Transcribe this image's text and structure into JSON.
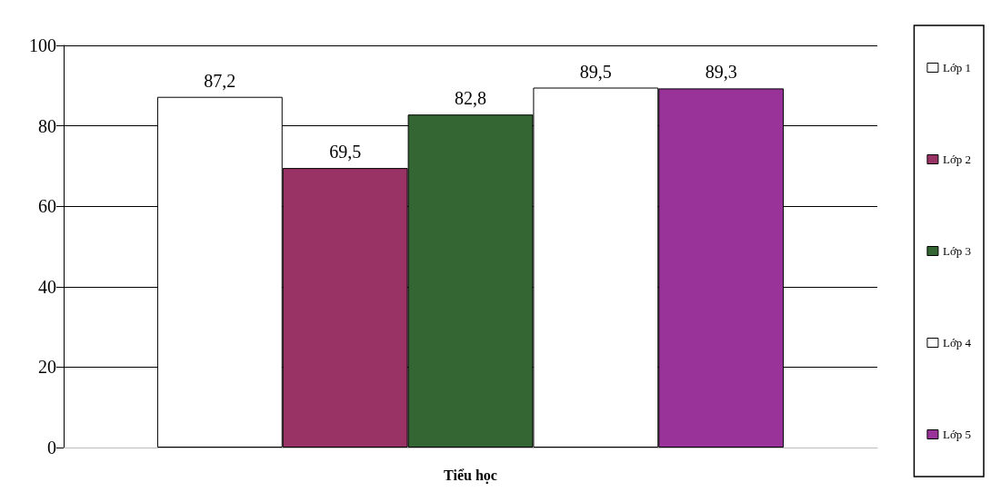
{
  "chart_data": {
    "type": "bar",
    "categories": [
      "Tiểu học"
    ],
    "series": [
      {
        "name": "Lớp 1",
        "color": "#ffffff",
        "values": [
          87.2
        ],
        "value_labels": [
          "87,2"
        ]
      },
      {
        "name": "Lớp 2",
        "color": "#993366",
        "values": [
          69.5
        ],
        "value_labels": [
          "69,5"
        ]
      },
      {
        "name": "Lớp 3",
        "color": "#336633",
        "values": [
          82.8
        ],
        "value_labels": [
          "82,8"
        ]
      },
      {
        "name": "Lớp 4",
        "color": "#ffffff",
        "values": [
          89.5
        ],
        "value_labels": [
          "89,5"
        ]
      },
      {
        "name": "Lớp 5",
        "color": "#993399",
        "values": [
          89.3
        ],
        "value_labels": [
          "89,3"
        ]
      }
    ],
    "ylim": [
      0,
      100
    ],
    "yticks": [
      0,
      20,
      40,
      60,
      80,
      100
    ],
    "grid": "y",
    "legend": "right"
  }
}
